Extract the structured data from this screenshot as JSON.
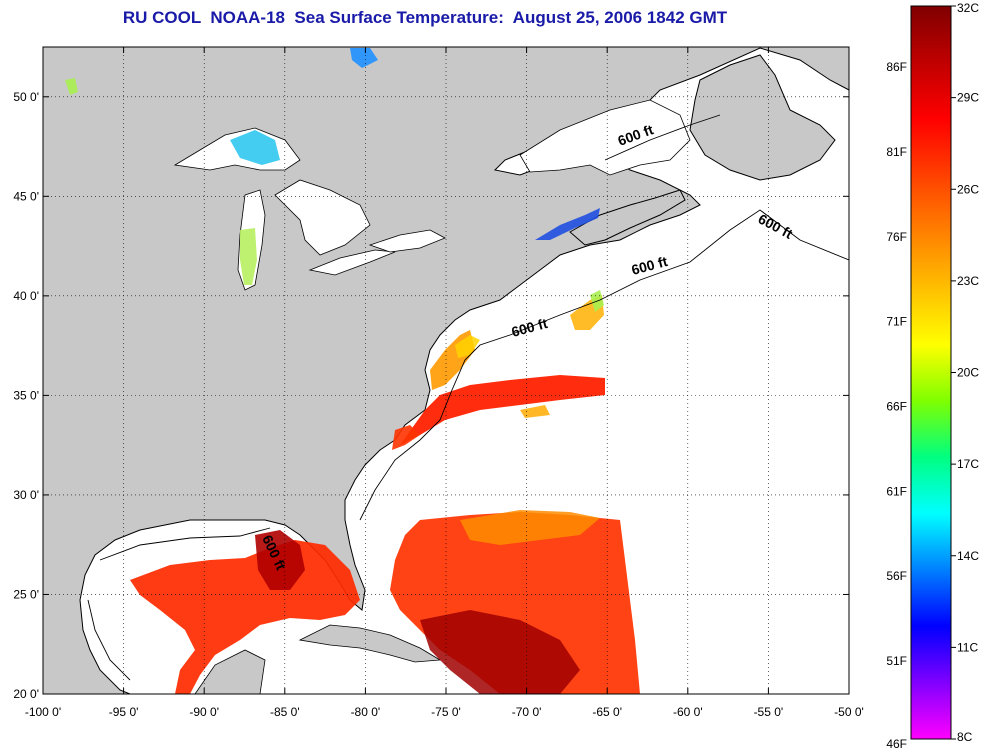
{
  "title": "RU COOL  NOAA-18  Sea Surface Temperature:  August 25, 2006 1842 GMT",
  "map": {
    "lon_range": [
      -100,
      -50
    ],
    "lat_range": [
      20,
      52.5
    ],
    "lon_ticks": [
      -100,
      -95,
      -90,
      -85,
      -80,
      -75,
      -70,
      -65,
      -60,
      -55,
      -50
    ],
    "lat_ticks": [
      20,
      25,
      30,
      35,
      40,
      45,
      50
    ],
    "lon_labels": [
      "-100 0'",
      "-95 0'",
      "-90 0'",
      "-85 0'",
      "-80 0'",
      "-75 0'",
      "-70 0'",
      "-65 0'",
      "-60 0'",
      "-55 0'",
      "-50 0'"
    ],
    "lat_labels": [
      "20 0'",
      "25 0'",
      "30 0'",
      "35 0'",
      "40 0'",
      "45 0'",
      "50 0'"
    ],
    "grid": "dotted",
    "land_color": "#c8c8c8",
    "ocean_color": "#ffffff",
    "contour_label": "600 ft"
  },
  "colorbar": {
    "celsius_labels": [
      "32C",
      "29C",
      "26C",
      "23C",
      "20C",
      "17C",
      "14C",
      "11C",
      "8C"
    ],
    "fahrenheit_labels": [
      "86F",
      "81F",
      "76F",
      "71F",
      "66F",
      "61F",
      "56F",
      "51F",
      "46F"
    ],
    "range_c": [
      8,
      32
    ],
    "colors": [
      "#ff00ff",
      "#8000ff",
      "#0000ff",
      "#0080ff",
      "#00ffff",
      "#00ff80",
      "#80ff00",
      "#ffff00",
      "#ffbf00",
      "#ff8000",
      "#ff4000",
      "#ff0000",
      "#c00000",
      "#800000"
    ]
  }
}
